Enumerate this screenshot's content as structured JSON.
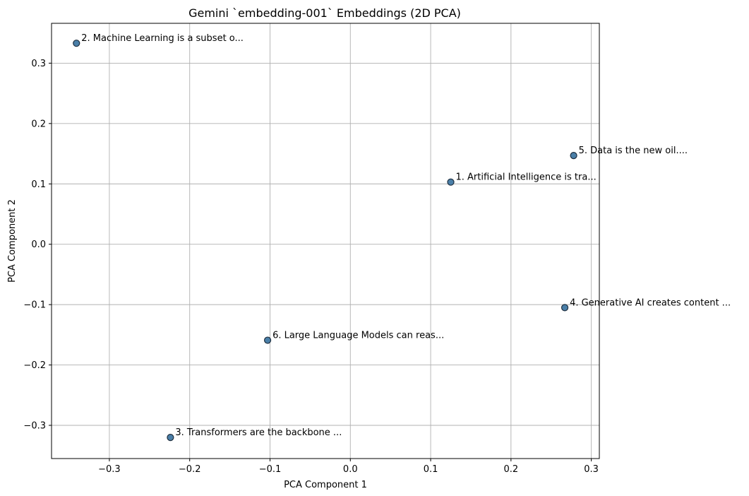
{
  "chart_data": {
    "type": "scatter",
    "title": "Gemini `embedding-001` Embeddings (2D PCA)",
    "xlabel": "PCA Component 1",
    "ylabel": "PCA Component 2",
    "xlim": [
      -0.372,
      0.31
    ],
    "ylim": [
      -0.355,
      0.366
    ],
    "xticks": [
      -0.3,
      -0.2,
      -0.1,
      0.0,
      0.1,
      0.2,
      0.3
    ],
    "yticks": [
      -0.3,
      -0.2,
      -0.1,
      0.0,
      0.1,
      0.2,
      0.3
    ],
    "xtick_labels": [
      "−0.3",
      "−0.2",
      "−0.1",
      "0.0",
      "0.1",
      "0.2",
      "0.3"
    ],
    "ytick_labels": [
      "−0.3",
      "−0.2",
      "−0.1",
      "0.0",
      "0.1",
      "0.2",
      "0.3"
    ],
    "grid": true,
    "marker_color": "#4a7fa8",
    "points": [
      {
        "label": "1. Artificial Intelligence is tra...",
        "x": 0.125,
        "y": 0.103
      },
      {
        "label": "2. Machine Learning is a subset o...",
        "x": -0.341,
        "y": 0.333
      },
      {
        "label": "3. Transformers are the backbone ...",
        "x": -0.224,
        "y": -0.32
      },
      {
        "label": "4. Generative AI creates content ...",
        "x": 0.267,
        "y": -0.105
      },
      {
        "label": "5. Data is the new oil....",
        "x": 0.278,
        "y": 0.147
      },
      {
        "label": "6. Large Language Models can reas...",
        "x": -0.103,
        "y": -0.159
      }
    ]
  }
}
